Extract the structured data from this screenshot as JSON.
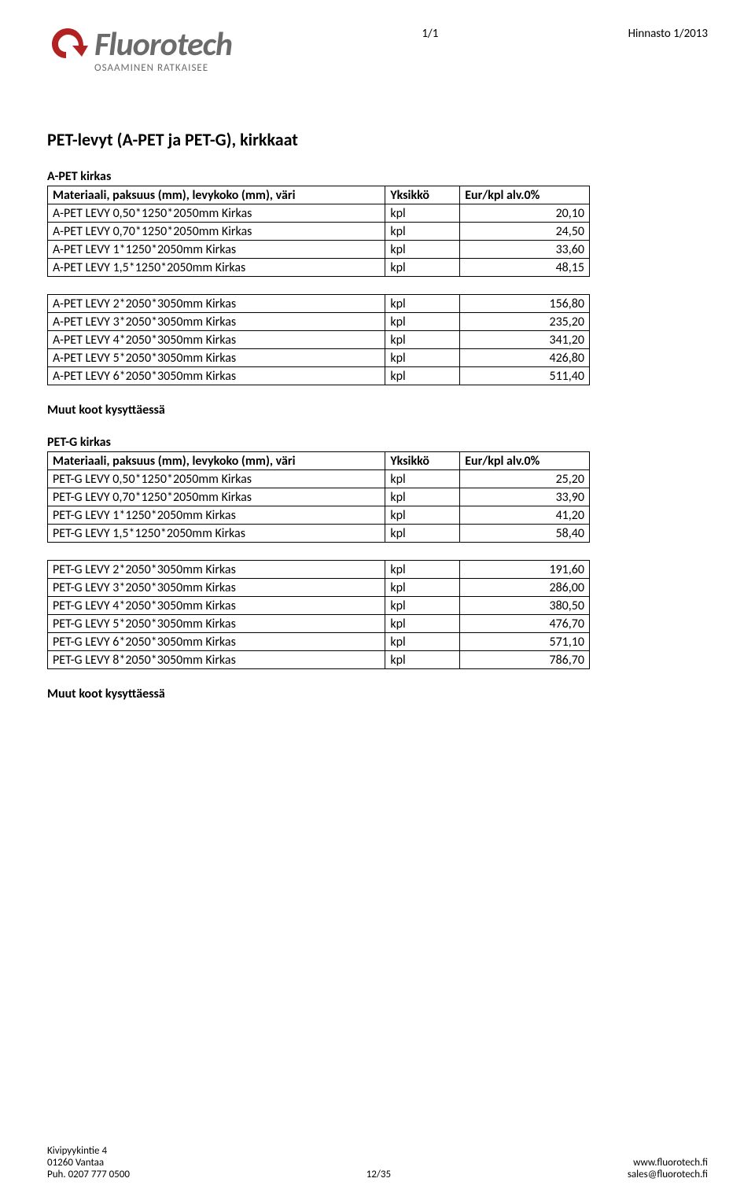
{
  "header": {
    "page_indicator": "1/1",
    "doc_label": "Hinnasto 1/2013",
    "logo_text": "Fluorotech",
    "logo_sub": "OSAAMINEN RATKAISEE",
    "logo_colors": {
      "arrow": "#b22222",
      "text": "#6b6b6b"
    }
  },
  "title": "PET-levyt (A-PET ja PET-G), kirkkaat",
  "apet": {
    "heading": "A-PET kirkas",
    "columns": [
      "Materiaali, paksuus (mm), levykoko (mm), väri",
      "Yksikkö",
      "Eur/kpl alv.0%"
    ],
    "group1": [
      [
        "A-PET LEVY 0,50*1250*2050mm Kirkas",
        "kpl",
        "20,10"
      ],
      [
        "A-PET LEVY 0,70*1250*2050mm Kirkas",
        "kpl",
        "24,50"
      ],
      [
        "A-PET LEVY 1*1250*2050mm Kirkas",
        "kpl",
        "33,60"
      ],
      [
        "A-PET LEVY 1,5*1250*2050mm Kirkas",
        "kpl",
        "48,15"
      ]
    ],
    "group2": [
      [
        "A-PET LEVY  2*2050*3050mm Kirkas",
        "kpl",
        "156,80"
      ],
      [
        "A-PET LEVY  3*2050*3050mm Kirkas",
        "kpl",
        "235,20"
      ],
      [
        "A-PET LEVY  4*2050*3050mm Kirkas",
        "kpl",
        "341,20"
      ],
      [
        "A-PET LEVY  5*2050*3050mm Kirkas",
        "kpl",
        "426,80"
      ],
      [
        "A-PET LEVY  6*2050*3050mm Kirkas",
        "kpl",
        "511,40"
      ]
    ]
  },
  "note": "Muut koot kysyttäessä",
  "petg": {
    "heading": "PET-G kirkas",
    "columns": [
      "Materiaali, paksuus (mm), levykoko (mm), väri",
      "Yksikkö",
      "Eur/kpl alv.0%"
    ],
    "group1": [
      [
        "PET-G LEVY  0,50*1250*2050mm Kirkas",
        "kpl",
        "25,20"
      ],
      [
        "PET-G LEVY  0,70*1250*2050mm Kirkas",
        "kpl",
        "33,90"
      ],
      [
        "PET-G LEVY  1*1250*2050mm Kirkas",
        "kpl",
        "41,20"
      ],
      [
        "PET-G LEVY  1,5*1250*2050mm Kirkas",
        "kpl",
        "58,40"
      ]
    ],
    "group2": [
      [
        "PET-G LEVY  2*2050*3050mm Kirkas",
        "kpl",
        "191,60"
      ],
      [
        "PET-G LEVY  3*2050*3050mm Kirkas",
        "kpl",
        "286,00"
      ],
      [
        "PET-G LEVY  4*2050*3050mm Kirkas",
        "kpl",
        "380,50"
      ],
      [
        "PET-G LEVY  5*2050*3050mm Kirkas",
        "kpl",
        "476,70"
      ],
      [
        "PET-G LEVY  6*2050*3050mm Kirkas",
        "kpl",
        "571,10"
      ],
      [
        "PET-G LEVY  8*2050*3050mm Kirkas",
        "kpl",
        "786,70"
      ]
    ]
  },
  "footer": {
    "left": [
      "Kivipyykintie 4",
      "01260 Vantaa",
      "Puh. 0207 777 0500"
    ],
    "center": "12/35",
    "right": [
      "www.fluorotech.fi",
      "sales@fluorotech.fi"
    ]
  }
}
